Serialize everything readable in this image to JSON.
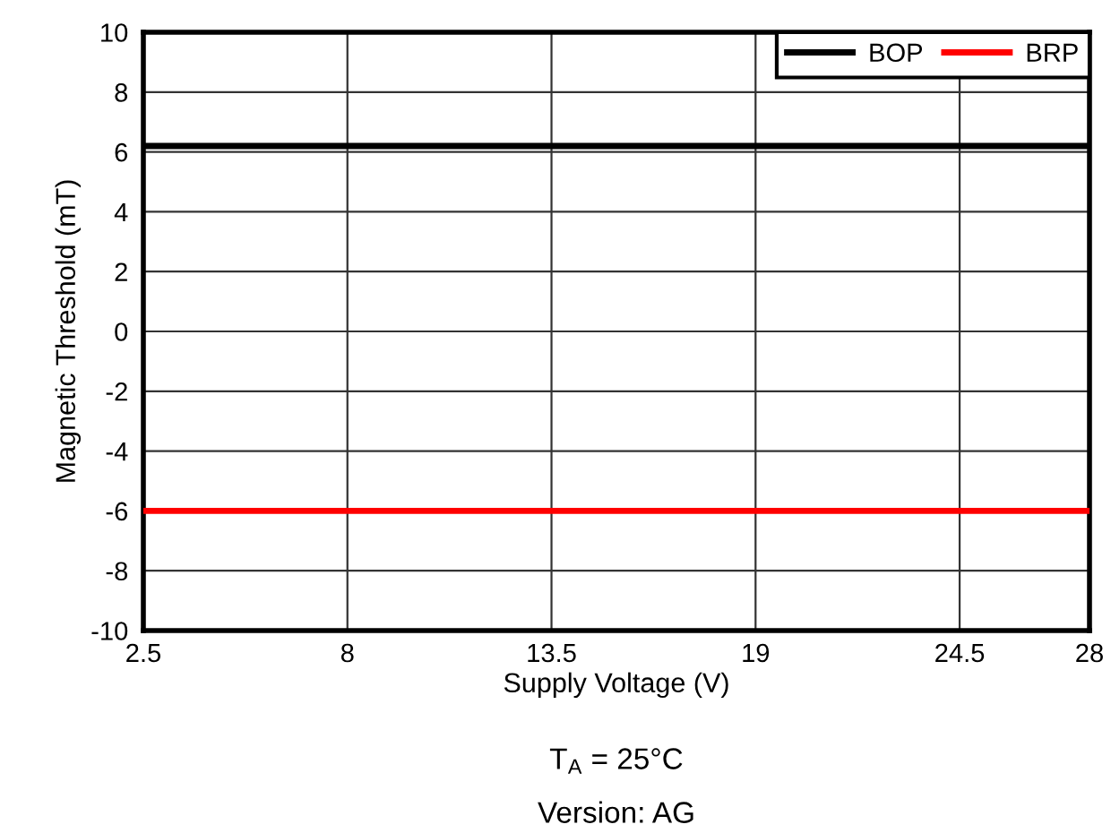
{
  "chart_data": {
    "type": "line",
    "xlabel": "Supply Voltage (V)",
    "ylabel": "Magnetic Threshold (mT)",
    "x": [
      2.5,
      28
    ],
    "series": [
      {
        "name": "BOP",
        "color": "#000000",
        "values": [
          6.2,
          6.2
        ]
      },
      {
        "name": "BRP",
        "color": "#ff0000",
        "values": [
          -6,
          -6
        ]
      }
    ],
    "xlim": [
      2.5,
      28
    ],
    "xticks": [
      2.5,
      8,
      13.5,
      19,
      24.5,
      28
    ],
    "ylim": [
      -10,
      10
    ],
    "yticks": [
      -10,
      -8,
      -6,
      -4,
      -2,
      0,
      2,
      4,
      6,
      8,
      10
    ],
    "grid": true,
    "legend": "top right",
    "marker": "none",
    "line_style": "solid",
    "annotations": [
      "T$_{A}$ = 25°C",
      "Version: AG"
    ]
  }
}
